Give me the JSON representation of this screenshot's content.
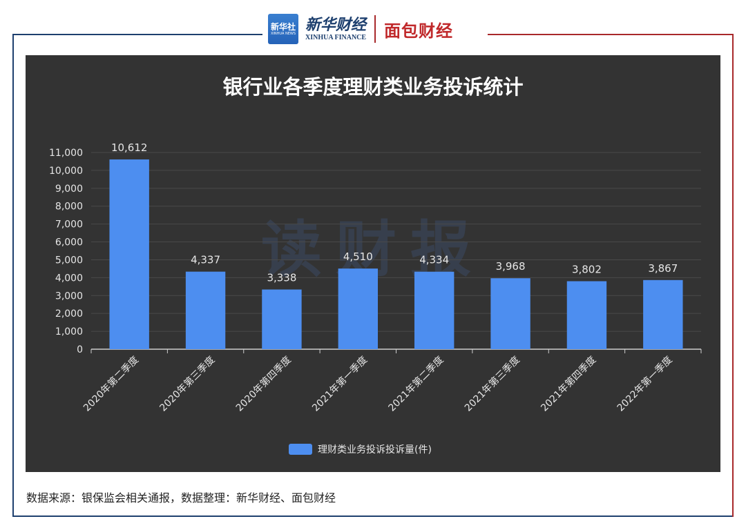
{
  "header": {
    "xinhua_badge_text": "新华社",
    "xinhua_badge_sub": "XINHUA NEWS",
    "xinhua_finance_cn": "新华财经",
    "xinhua_finance_en": "XINHUA FINANCE",
    "mianbao_logo": "面包财经"
  },
  "colors": {
    "panel_bg": "#333333",
    "bar": "#4d8ef0",
    "frame_blue": "#1d3f6e",
    "frame_red": "#a8282a"
  },
  "chart_data": {
    "type": "bar",
    "title": "银行业各季度理财类业务投诉统计",
    "watermark": "读财报",
    "categories": [
      "2020年第二季度",
      "2020年第三季度",
      "2020年第四季度",
      "2021年第一季度",
      "2021年第二季度",
      "2021年第三季度",
      "2021年第四季度",
      "2022年第一季度"
    ],
    "series": [
      {
        "name": "理财类业务投诉投诉量(件)",
        "values": [
          10612,
          4337,
          3338,
          4510,
          4334,
          3968,
          3802,
          3867
        ]
      }
    ],
    "data_labels": [
      "10,612",
      "4,337",
      "3,338",
      "4,510",
      "4,334",
      "3,968",
      "3,802",
      "3,867"
    ],
    "yticks": [
      "0",
      "1,000",
      "2,000",
      "3,000",
      "4,000",
      "5,000",
      "6,000",
      "7,000",
      "8,000",
      "9,000",
      "10,000",
      "11,000"
    ],
    "ylim": [
      0,
      11000
    ],
    "grid": true,
    "legend_position": "bottom-center"
  },
  "footer": {
    "source": "数据来源：银保监会相关通报，数据整理：新华财经、面包财经"
  }
}
